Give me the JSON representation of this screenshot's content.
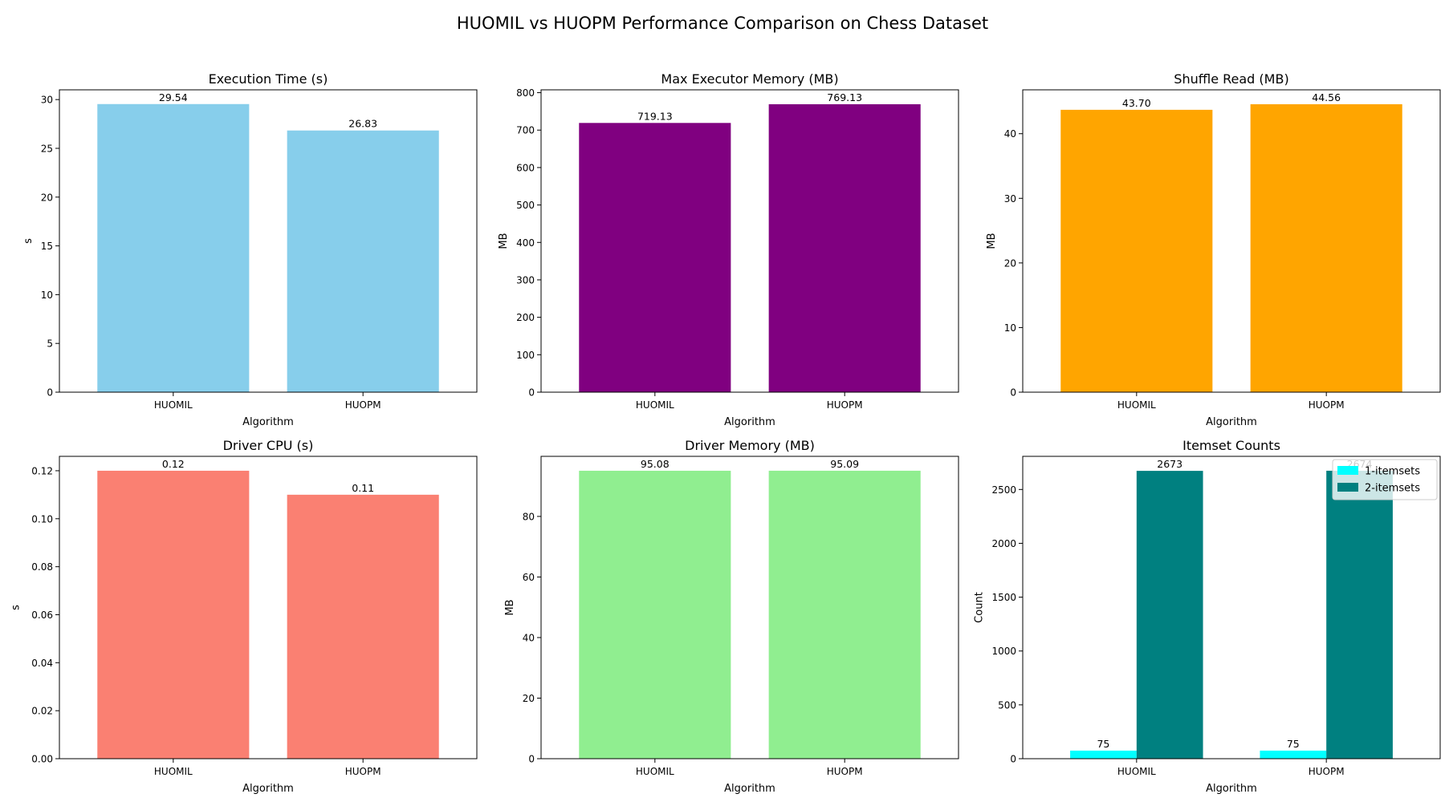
{
  "figure": {
    "title": "HUOMIL vs HUOPM Performance Comparison on Chess Dataset"
  },
  "chart_data": [
    {
      "type": "bar",
      "title": "Execution Time (s)",
      "xlabel": "Algorithm",
      "ylabel": "s",
      "categories": [
        "HUOMIL",
        "HUOPM"
      ],
      "values": [
        29.54,
        26.83
      ],
      "value_labels": [
        "29.54",
        "26.83"
      ],
      "ylim": [
        0,
        31
      ],
      "yticks": [
        0,
        5,
        10,
        15,
        20,
        25,
        30
      ],
      "ytick_labels": [
        "0",
        "5",
        "10",
        "15",
        "20",
        "25",
        "30"
      ],
      "color": "#87ceeb",
      "grid": false
    },
    {
      "type": "bar",
      "title": "Max Executor Memory (MB)",
      "xlabel": "Algorithm",
      "ylabel": "MB",
      "categories": [
        "HUOMIL",
        "HUOPM"
      ],
      "values": [
        719.13,
        769.13
      ],
      "value_labels": [
        "719.13",
        "769.13"
      ],
      "ylim": [
        0,
        807.6
      ],
      "yticks": [
        0,
        100,
        200,
        300,
        400,
        500,
        600,
        700,
        800
      ],
      "ytick_labels": [
        "0",
        "100",
        "200",
        "300",
        "400",
        "500",
        "600",
        "700",
        "800"
      ],
      "color": "#800080",
      "grid": false
    },
    {
      "type": "bar",
      "title": "Shuffle Read (MB)",
      "xlabel": "Algorithm",
      "ylabel": "MB",
      "categories": [
        "HUOMIL",
        "HUOPM"
      ],
      "values": [
        43.7,
        44.56
      ],
      "value_labels": [
        "43.70",
        "44.56"
      ],
      "ylim": [
        0,
        46.79
      ],
      "yticks": [
        0,
        10,
        20,
        30,
        40
      ],
      "ytick_labels": [
        "0",
        "10",
        "20",
        "30",
        "40"
      ],
      "color": "#ffa500",
      "grid": false
    },
    {
      "type": "bar",
      "title": "Driver CPU (s)",
      "xlabel": "Algorithm",
      "ylabel": "s",
      "categories": [
        "HUOMIL",
        "HUOPM"
      ],
      "values": [
        0.12,
        0.11
      ],
      "value_labels": [
        "0.12",
        "0.11"
      ],
      "ylim": [
        0,
        0.126
      ],
      "yticks": [
        0,
        0.02,
        0.04,
        0.06,
        0.08,
        0.1,
        0.12
      ],
      "ytick_labels": [
        "0.00",
        "0.02",
        "0.04",
        "0.06",
        "0.08",
        "0.10",
        "0.12"
      ],
      "color": "#fa8072",
      "grid": false
    },
    {
      "type": "bar",
      "title": "Driver Memory (MB)",
      "xlabel": "Algorithm",
      "ylabel": "MB",
      "categories": [
        "HUOMIL",
        "HUOPM"
      ],
      "values": [
        95.08,
        95.09
      ],
      "value_labels": [
        "95.08",
        "95.09"
      ],
      "ylim": [
        0,
        99.84
      ],
      "yticks": [
        0,
        20,
        40,
        60,
        80
      ],
      "ytick_labels": [
        "0",
        "20",
        "40",
        "60",
        "80"
      ],
      "color": "#90ee90",
      "grid": false
    },
    {
      "type": "bar",
      "title": "Itemset Counts",
      "xlabel": "Algorithm",
      "ylabel": "Count",
      "categories": [
        "HUOMIL",
        "HUOPM"
      ],
      "series": [
        {
          "name": "1-itemsets",
          "values": [
            75,
            75
          ],
          "value_labels": [
            "75",
            "75"
          ],
          "color": "#00ffff"
        },
        {
          "name": "2-itemsets",
          "values": [
            2673,
            2674
          ],
          "value_labels": [
            "2673",
            "2674"
          ],
          "color": "#008080"
        }
      ],
      "ylim": [
        0,
        2807.7
      ],
      "yticks": [
        0,
        500,
        1000,
        1500,
        2000,
        2500
      ],
      "ytick_labels": [
        "0",
        "500",
        "1000",
        "1500",
        "2000",
        "2500"
      ],
      "legend": "top-right",
      "grid": false
    }
  ]
}
